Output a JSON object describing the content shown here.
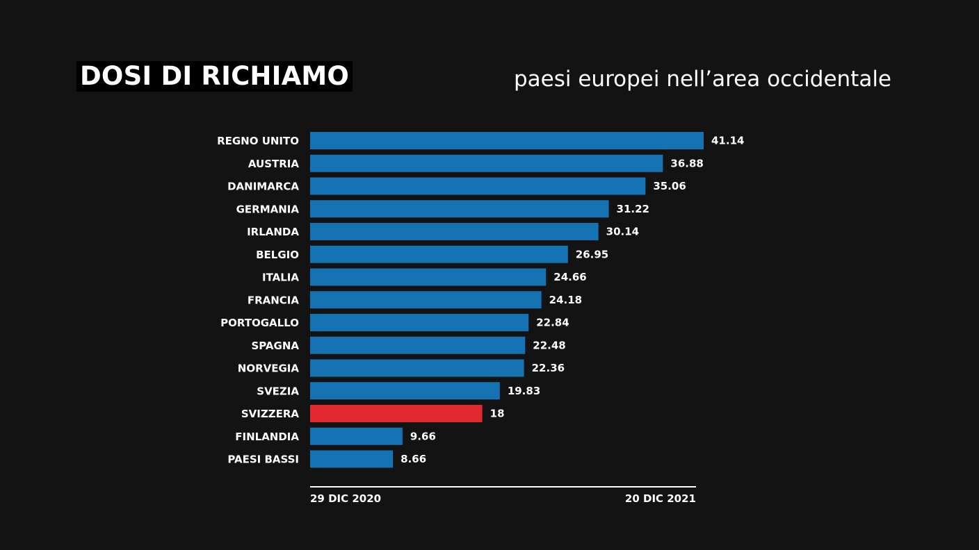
{
  "title": "DOSI DI RICHIAMO",
  "subtitle": "paesi europei nell’area occidentale",
  "colors": {
    "background": "#131313",
    "bar": "#1673b3",
    "highlight": "#e0282e",
    "text": "#ffffff"
  },
  "chart_data": {
    "type": "bar",
    "orientation": "horizontal",
    "categories": [
      "REGNO UNITO",
      "AUSTRIA",
      "DANIMARCA",
      "GERMANIA",
      "IRLANDA",
      "BELGIO",
      "ITALIA",
      "FRANCIA",
      "PORTOGALLO",
      "SPAGNA",
      "NORVEGIA",
      "SVEZIA",
      "SVIZZERA",
      "FINLANDIA",
      "PAESI BASSI"
    ],
    "values": [
      41.14,
      36.88,
      35.06,
      31.22,
      30.14,
      26.95,
      24.66,
      24.18,
      22.84,
      22.48,
      22.36,
      19.83,
      18,
      9.66,
      8.66
    ],
    "value_labels": [
      "41.14",
      "36.88",
      "35.06",
      "31.22",
      "30.14",
      "26.95",
      "24.66",
      "24.18",
      "22.84",
      "22.48",
      "22.36",
      "19.83",
      "18",
      "9.66",
      "8.66"
    ],
    "highlight_category": "SVIZZERA",
    "xlim": [
      0,
      41.14
    ],
    "timeline": {
      "start_label": "29 DIC 2020",
      "end_label": "20 DIC 2021"
    },
    "grid": false,
    "legend": "none"
  }
}
